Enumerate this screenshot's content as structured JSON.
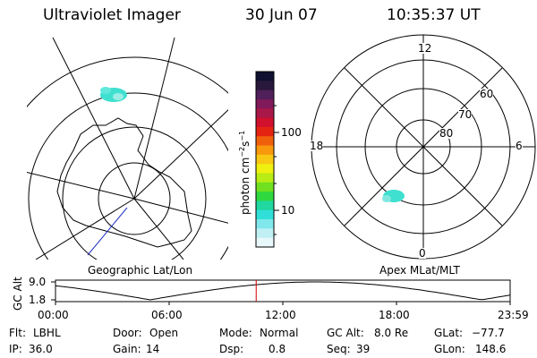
{
  "header": {
    "instrument": "Ultraviolet Imager",
    "date": "30 Jun 07",
    "time": "10:35:37 UT"
  },
  "colorbar": {
    "label": "photon cm",
    "label_exp1": "−2",
    "label_mid": "s",
    "label_exp2": "−1",
    "ticks": [
      "100",
      "10"
    ],
    "colors": [
      "#101030",
      "#28183c",
      "#50205a",
      "#801a5a",
      "#a81848",
      "#d0102c",
      "#e42410",
      "#f0600c",
      "#f8980c",
      "#f8c814",
      "#f0f010",
      "#b8ec14",
      "#70e020",
      "#30d840",
      "#20d8a0",
      "#30e0d8",
      "#80e8ec",
      "#c0f0f4",
      "#e8f8fa"
    ]
  },
  "geo_panel": {
    "label": "Geographic Lat/Lon"
  },
  "mag_panel": {
    "label": "Apex MLat/MLT",
    "mlt_labels": {
      "top": "12",
      "left": "18",
      "right": "6",
      "bottom": "0"
    },
    "lat_labels": [
      "60",
      "70",
      "80"
    ]
  },
  "alt_plot": {
    "ylabel": "GC Alt",
    "yticks": [
      "9.0",
      "1.8"
    ],
    "xticks": [
      "00:00",
      "06:00",
      "12:00",
      "18:00",
      "23:59"
    ],
    "marker_time": "10:35:37",
    "marker_color": "#d00000"
  },
  "info": {
    "row1": [
      {
        "label": "Flt:",
        "value": "LBHL"
      },
      {
        "label": "Door:",
        "value": "Open"
      },
      {
        "label": "Mode:",
        "value": "Normal"
      },
      {
        "label": "GC Alt:",
        "value": "8.0 Re"
      },
      {
        "label": "GLat:",
        "value": "−77.7"
      }
    ],
    "row2": [
      {
        "label": "IP:",
        "value": "36.0"
      },
      {
        "label": "Gain:",
        "value": "14"
      },
      {
        "label": "Dsp:",
        "value": "0.8"
      },
      {
        "label": "Seq:",
        "value": "39"
      },
      {
        "label": "GLon:",
        "value": "148.6"
      }
    ]
  },
  "colors": {
    "aurora": "#40e0d0",
    "track": "#2030c0"
  }
}
